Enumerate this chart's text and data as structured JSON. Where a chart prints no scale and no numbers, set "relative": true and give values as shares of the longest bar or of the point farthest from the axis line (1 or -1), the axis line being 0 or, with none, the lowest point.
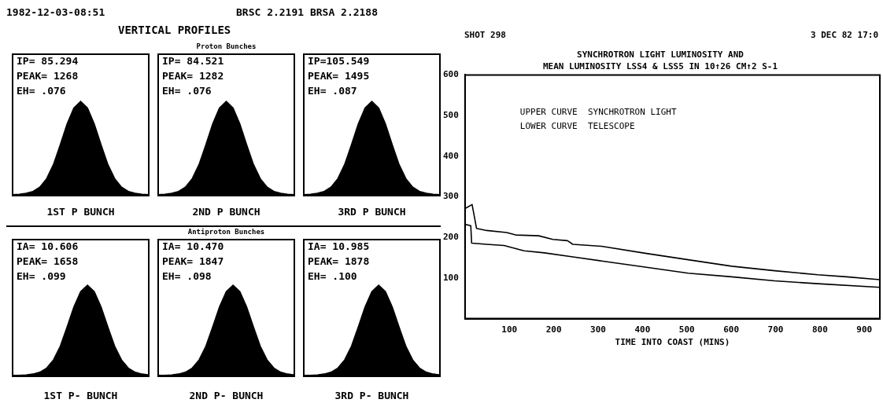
{
  "chart_data": [
    {
      "type": "area",
      "relative": true,
      "xlabel": "1ST P BUNCH",
      "color": "#000000",
      "annotations": [
        "IP= 85.294",
        "PEAK= 1268",
        "EH= .076",
        "1982-12-03-08:51",
        "BRSC 2.2191 BRSA 2.2188",
        "VERTICAL PROFILES"
      ],
      "categories": [
        null,
        null,
        null,
        null,
        null,
        null,
        null,
        null,
        null,
        null,
        null,
        null,
        null,
        null,
        null,
        null,
        null,
        null,
        null,
        null,
        null
      ],
      "values": [
        0.01,
        0.015,
        0.025,
        0.045,
        0.09,
        0.18,
        0.33,
        0.54,
        0.76,
        0.93,
        1,
        0.93,
        0.76,
        0.54,
        0.33,
        0.18,
        0.09,
        0.045,
        0.025,
        0.015,
        0.01
      ]
    },
    {
      "type": "area",
      "relative": true,
      "title": "Proton Bunches",
      "xlabel": "2ND P BUNCH",
      "color": "#000000",
      "annotations": [
        "IP= 84.521",
        "PEAK= 1282",
        "EH= .076"
      ],
      "categories": [
        null,
        null,
        null,
        null,
        null,
        null,
        null,
        null,
        null,
        null,
        null,
        null,
        null,
        null,
        null,
        null,
        null,
        null,
        null,
        null,
        null
      ],
      "values": [
        0.01,
        0.015,
        0.025,
        0.045,
        0.09,
        0.18,
        0.33,
        0.54,
        0.76,
        0.93,
        1,
        0.93,
        0.76,
        0.54,
        0.33,
        0.18,
        0.09,
        0.045,
        0.025,
        0.015,
        0.01
      ]
    },
    {
      "type": "area",
      "relative": true,
      "xlabel": "3RD P BUNCH",
      "color": "#000000",
      "annotations": [
        "IP=105.549",
        "PEAK= 1495",
        "EH= .087"
      ],
      "categories": [
        null,
        null,
        null,
        null,
        null,
        null,
        null,
        null,
        null,
        null,
        null,
        null,
        null,
        null,
        null,
        null,
        null,
        null,
        null,
        null,
        null
      ],
      "values": [
        0.01,
        0.015,
        0.025,
        0.045,
        0.09,
        0.18,
        0.33,
        0.54,
        0.76,
        0.93,
        1,
        0.93,
        0.76,
        0.54,
        0.33,
        0.18,
        0.09,
        0.045,
        0.025,
        0.015,
        0.01
      ]
    },
    {
      "type": "area",
      "relative": true,
      "xlabel": "1ST P- BUNCH",
      "color": "#000000",
      "annotations": [
        "IA= 10.606",
        "PEAK= 1658",
        "EH= .099"
      ],
      "categories": [
        null,
        null,
        null,
        null,
        null,
        null,
        null,
        null,
        null,
        null,
        null,
        null,
        null,
        null,
        null,
        null,
        null,
        null,
        null,
        null,
        null
      ],
      "values": [
        0.01,
        0.01,
        0.015,
        0.025,
        0.045,
        0.09,
        0.18,
        0.33,
        0.54,
        0.76,
        0.93,
        1,
        0.93,
        0.76,
        0.54,
        0.33,
        0.18,
        0.09,
        0.045,
        0.025,
        0.015
      ]
    },
    {
      "type": "area",
      "relative": true,
      "title": "Antiproton Bunches",
      "xlabel": "2ND P- BUNCH",
      "color": "#000000",
      "annotations": [
        "IA= 10.470",
        "PEAK= 1847",
        "EH= .098"
      ],
      "categories": [
        null,
        null,
        null,
        null,
        null,
        null,
        null,
        null,
        null,
        null,
        null,
        null,
        null,
        null,
        null,
        null,
        null,
        null,
        null,
        null,
        null
      ],
      "values": [
        0.01,
        0.01,
        0.015,
        0.025,
        0.045,
        0.09,
        0.18,
        0.33,
        0.54,
        0.76,
        0.93,
        1,
        0.93,
        0.76,
        0.54,
        0.33,
        0.18,
        0.09,
        0.045,
        0.025,
        0.015
      ]
    },
    {
      "type": "area",
      "relative": true,
      "xlabel": "3RD P- BUNCH",
      "color": "#000000",
      "annotations": [
        "IA= 10.985",
        "PEAK= 1878",
        "EH= .100"
      ],
      "categories": [
        null,
        null,
        null,
        null,
        null,
        null,
        null,
        null,
        null,
        null,
        null,
        null,
        null,
        null,
        null,
        null,
        null,
        null,
        null,
        null,
        null
      ],
      "values": [
        0.01,
        0.01,
        0.015,
        0.025,
        0.045,
        0.09,
        0.18,
        0.33,
        0.54,
        0.76,
        0.93,
        1,
        0.93,
        0.76,
        0.54,
        0.33,
        0.18,
        0.09,
        0.045,
        0.025,
        0.015
      ]
    },
    {
      "type": "line",
      "title": "SYNCHROTRON LIGHT LUMINOSITY AND",
      "subtitle": "MEAN LUMINOSITY LSS4 & LSS5 IN 10↑26 CM↑2 S-1",
      "xlabel": "TIME INTO COAST (MINS)",
      "annotations": [
        "SHOT 298",
        "3 DEC 82 17:0",
        "UPPER CURVE  SYNCHROTRON LIGHT",
        "LOWER CURVE  TELESCOPE"
      ],
      "xlim": [
        0,
        935
      ],
      "ylim": [
        0,
        600
      ],
      "xticks": [
        100,
        200,
        300,
        400,
        500,
        600,
        700,
        800,
        900
      ],
      "yticks": [
        100,
        200,
        300,
        400,
        500,
        600
      ],
      "series": [
        {
          "color": "#000000",
          "x": [
            0,
            16,
            26,
            49,
            94,
            114,
            166,
            198,
            231,
            243,
            308,
            406,
            503,
            601,
            698,
            795,
            860,
            935
          ],
          "values": [
            271,
            281,
            222,
            217,
            212,
            206,
            204,
            195,
            192,
            183,
            178,
            161,
            145,
            129,
            118,
            108,
            103,
            96
          ]
        },
        {
          "color": "#000000",
          "x": [
            0,
            13,
            15,
            49,
            88,
            133,
            179,
            243,
            308,
            406,
            503,
            601,
            698,
            795,
            935
          ],
          "values": [
            232,
            229,
            186,
            183,
            180,
            167,
            162,
            152,
            142,
            127,
            112,
            103,
            93,
            86,
            77
          ]
        }
      ]
    }
  ]
}
